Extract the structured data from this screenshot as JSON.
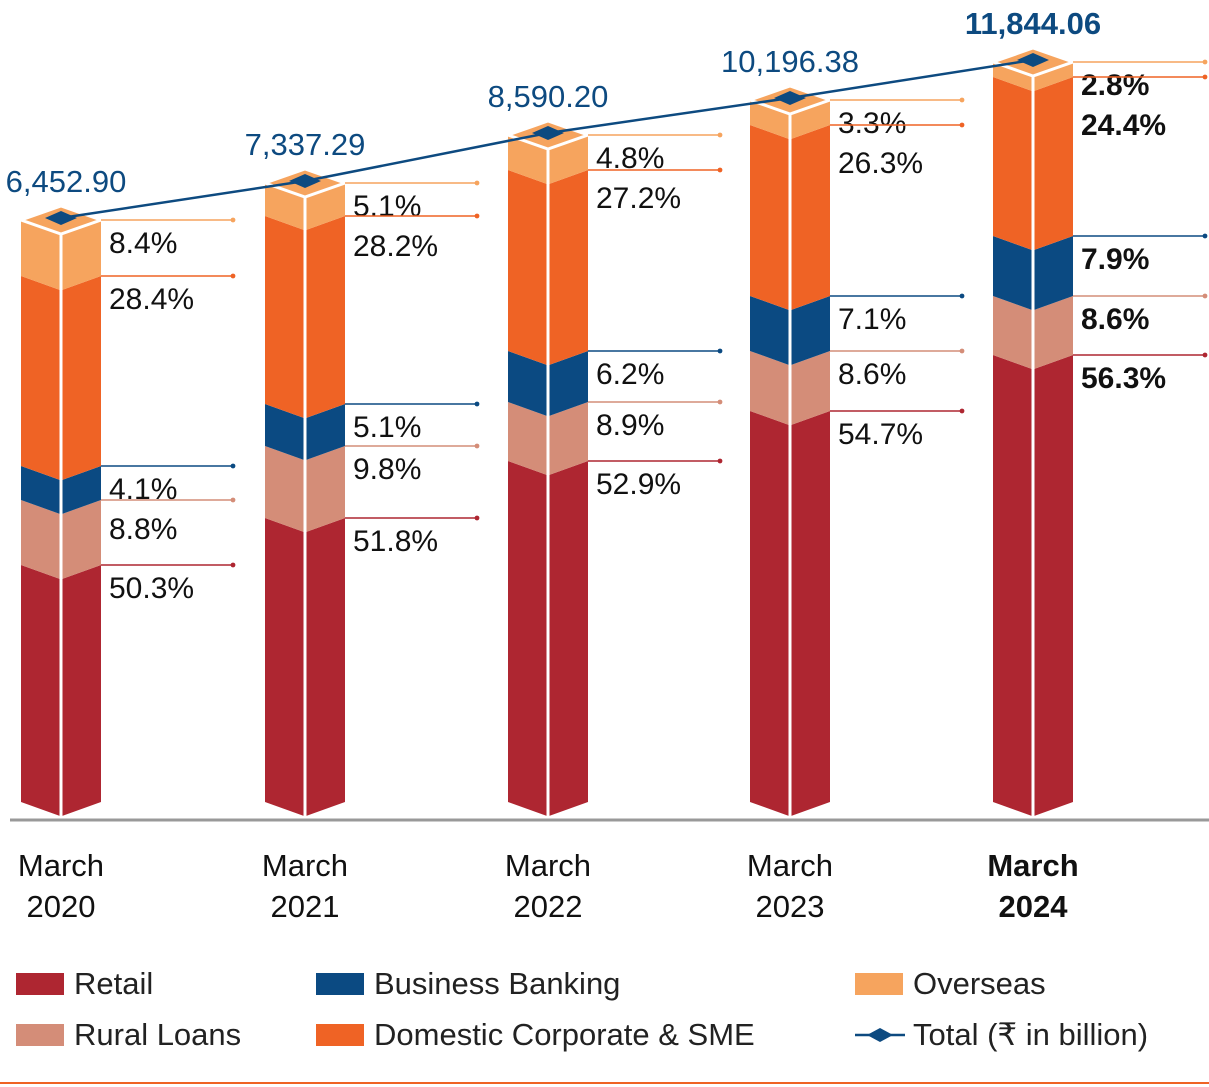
{
  "chart_data": {
    "type": "stacked-bar-with-line",
    "categories": [
      "March 2020",
      "March 2021",
      "March 2022",
      "March 2023",
      "March 2024"
    ],
    "category_lines": [
      [
        "March",
        "2020"
      ],
      [
        "March",
        "2021"
      ],
      [
        "March",
        "2022"
      ],
      [
        "March",
        "2023"
      ],
      [
        "March",
        "2024"
      ]
    ],
    "highlighted_category": "March 2024",
    "series": [
      {
        "name": "Retail",
        "color": "#ae2631",
        "values": [
          50.3,
          51.8,
          52.9,
          54.7,
          56.3
        ],
        "labels": [
          "50.3%",
          "51.8%",
          "52.9%",
          "54.7%",
          "56.3%"
        ]
      },
      {
        "name": "Rural Loans",
        "color": "#d48d78",
        "values": [
          8.8,
          9.8,
          8.9,
          8.6,
          8.6
        ],
        "labels": [
          "8.8%",
          "9.8%",
          "8.9%",
          "8.6%",
          "8.6%"
        ]
      },
      {
        "name": "Business Banking",
        "color": "#0b4a82",
        "values": [
          4.1,
          5.1,
          6.2,
          7.1,
          7.9
        ],
        "labels": [
          "4.1%",
          "5.1%",
          "6.2%",
          "7.1%",
          "7.9%"
        ]
      },
      {
        "name": "Domestic Corporate & SME",
        "color": "#ef6325",
        "values": [
          28.4,
          28.2,
          27.2,
          26.3,
          24.4
        ],
        "labels": [
          "28.4%",
          "28.2%",
          "27.2%",
          "26.3%",
          "24.4%"
        ]
      },
      {
        "name": "Overseas",
        "color": "#f6a45e",
        "values": [
          8.4,
          5.1,
          4.8,
          3.3,
          2.8
        ],
        "labels": [
          "8.4%",
          "5.1%",
          "4.8%",
          "3.3%",
          "2.8%"
        ]
      }
    ],
    "total": {
      "name": "Total (₹ in billion)",
      "color": "#0d4a80",
      "values": [
        6452.9,
        7337.29,
        8590.2,
        10196.38,
        11844.06
      ],
      "labels": [
        "6,452.90",
        "7,337.29",
        "8,590.20",
        "10,196.38",
        "11,844.06"
      ]
    },
    "legend": {
      "placement": "bottom",
      "items": [
        "Retail",
        "Business Banking",
        "Overseas",
        "Rural Loans",
        "Domestic Corporate & SME",
        "Total (₹ in billion)"
      ]
    },
    "unit": "%",
    "grid": false
  }
}
